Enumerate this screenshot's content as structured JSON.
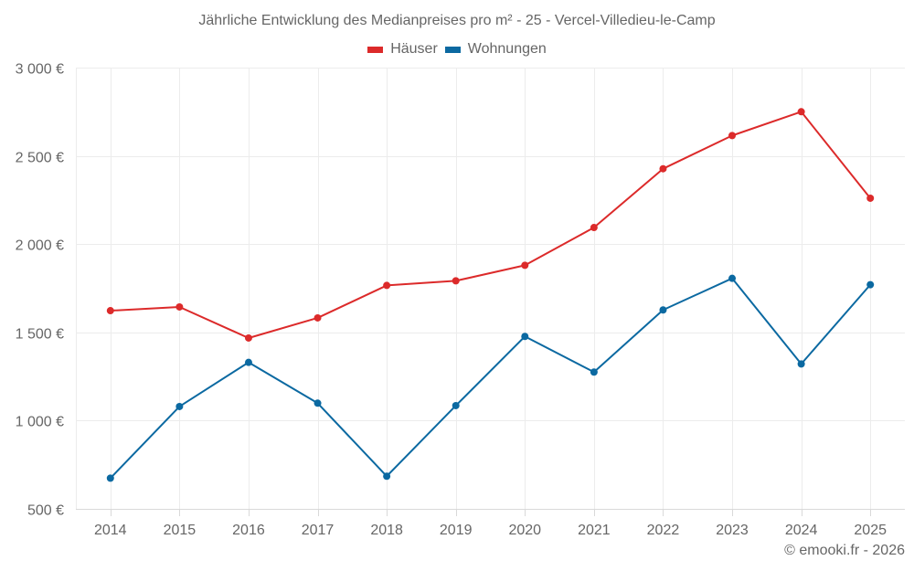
{
  "chart_data": {
    "type": "line",
    "title": "Jährliche Entwicklung des Medianpreises pro m² - 25 - Vercel-Villedieu-le-Camp",
    "xlabel": "",
    "ylabel": "",
    "categories": [
      "2014",
      "2015",
      "2016",
      "2017",
      "2018",
      "2019",
      "2020",
      "2021",
      "2022",
      "2023",
      "2024",
      "2025"
    ],
    "ylim": [
      500,
      3000
    ],
    "yticks": [
      500,
      1000,
      1500,
      2000,
      2500,
      3000
    ],
    "ytick_labels": [
      "500 €",
      "1 000 €",
      "1 500 €",
      "2 000 €",
      "2 500 €",
      "3 000 €"
    ],
    "grid": true,
    "legend_position": "top-center",
    "series": [
      {
        "name": "Häuser",
        "color": "#dc2a2a",
        "values": [
          1623,
          1644,
          1468,
          1582,
          1766,
          1792,
          1880,
          2094,
          2427,
          2615,
          2750,
          2260
        ]
      },
      {
        "name": "Wohnungen",
        "color": "#0b69a1",
        "values": [
          674,
          1080,
          1330,
          1099,
          685,
          1085,
          1477,
          1275,
          1627,
          1806,
          1321,
          1770
        ]
      }
    ]
  },
  "credit": "© emooki.fr - 2026"
}
